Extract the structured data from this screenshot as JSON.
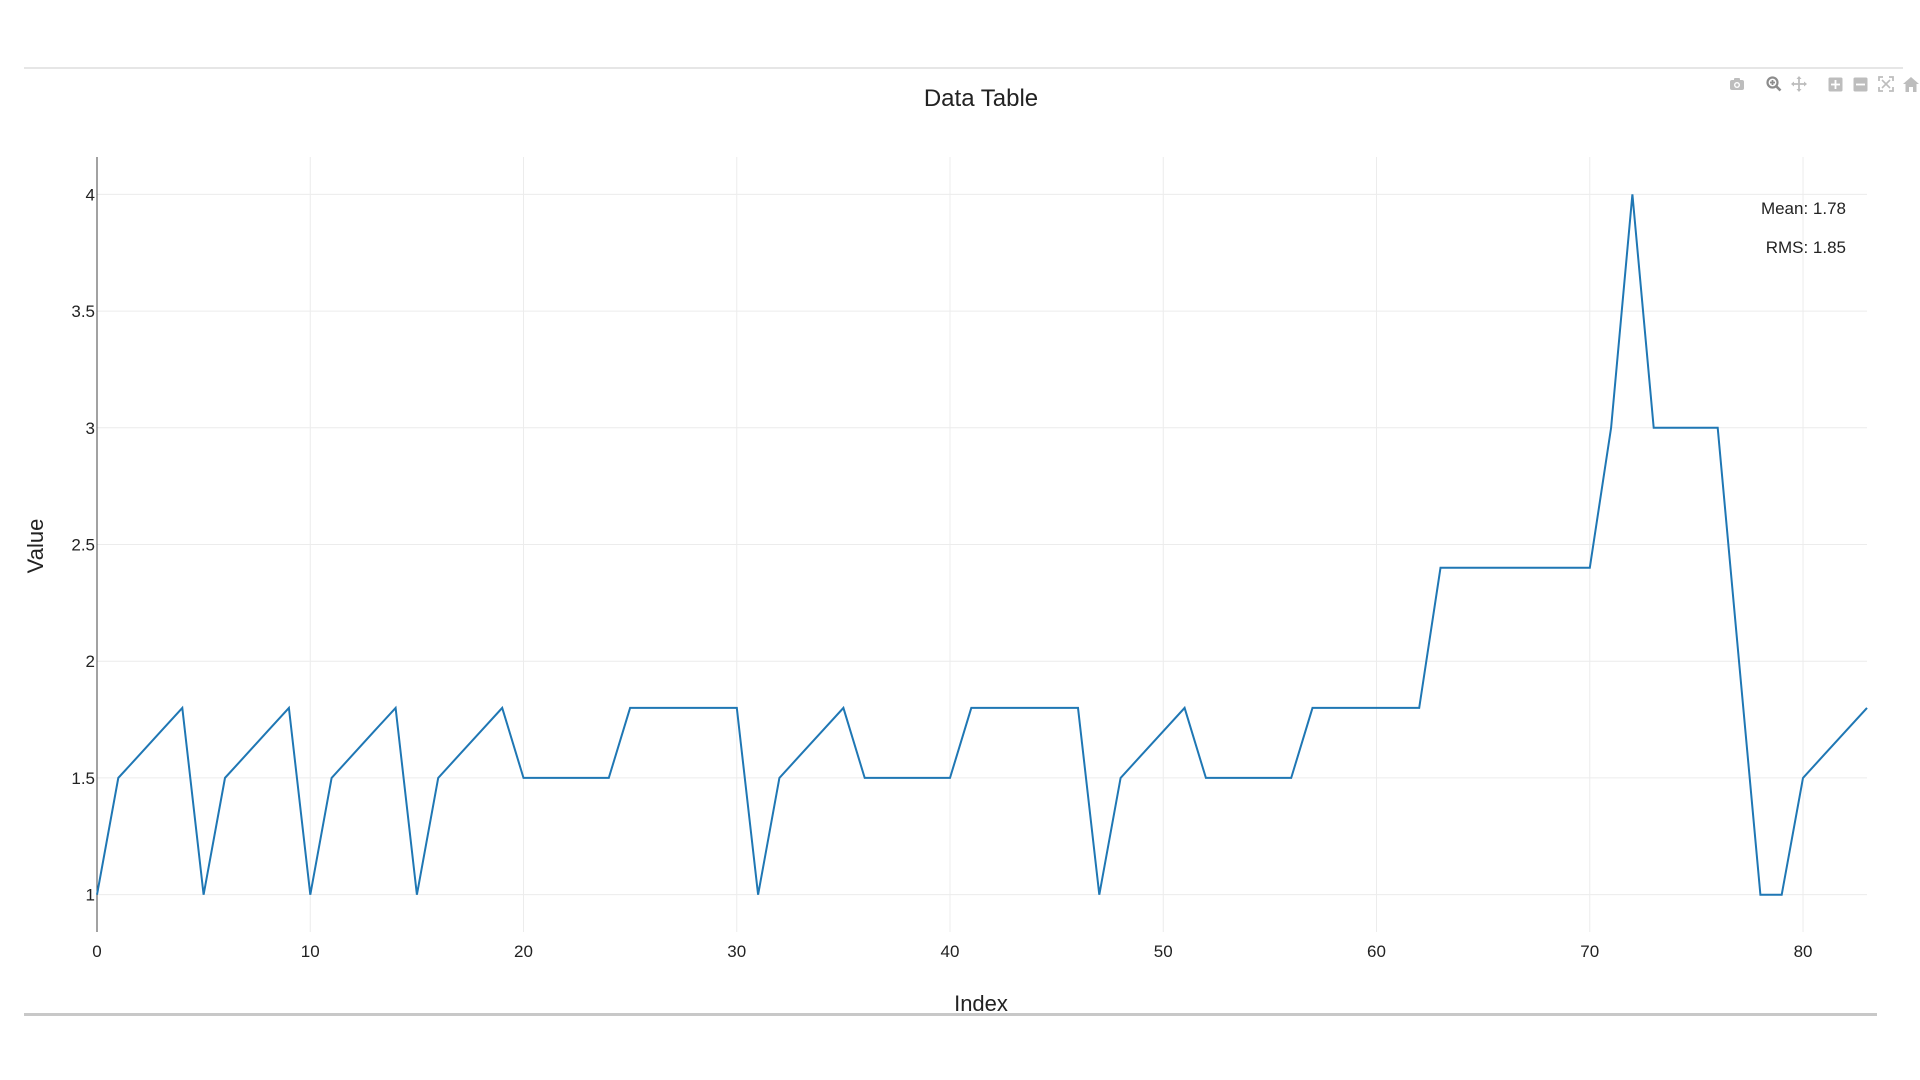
{
  "modebar": {
    "icons": [
      "camera-icon",
      "zoom-icon",
      "pan-icon",
      "zoom-in-icon",
      "zoom-out-icon",
      "autoscale-icon",
      "home-icon"
    ],
    "icon_color": "#bdbdbd"
  },
  "chart_data": {
    "type": "line",
    "title": "Data Table",
    "xlabel": "Index",
    "ylabel": "Value",
    "xlim": [
      0,
      83
    ],
    "ylim": [
      0.84,
      4.16
    ],
    "x_ticks": [
      0,
      10,
      20,
      30,
      40,
      50,
      60,
      70,
      80
    ],
    "y_ticks": [
      1,
      1.5,
      2,
      2.5,
      3,
      3.5,
      4
    ],
    "y_tick_labels": [
      "1",
      "1.5",
      "2",
      "2.5",
      "3",
      "3.5",
      "4"
    ],
    "grid": true,
    "line_color": "#1f77b4",
    "series": [
      {
        "x": [
          0,
          1,
          2,
          3,
          4,
          5,
          6,
          7,
          8,
          9,
          10,
          11,
          12,
          13,
          14,
          15,
          16,
          17,
          18,
          19,
          20,
          21,
          22,
          23,
          24,
          25,
          26,
          27,
          28,
          29,
          30,
          31,
          32,
          33,
          34,
          35,
          36,
          37,
          38,
          39,
          40,
          41,
          42,
          43,
          44,
          45,
          46,
          47,
          48,
          49,
          50,
          51,
          52,
          53,
          54,
          55,
          56,
          57,
          58,
          59,
          60,
          61,
          62,
          63,
          64,
          65,
          66,
          67,
          68,
          69,
          70,
          71,
          72,
          73,
          74,
          75,
          76,
          77,
          78,
          79,
          80,
          81,
          82,
          83
        ],
        "y": [
          1,
          1.5,
          1.6,
          1.7,
          1.8,
          1,
          1.5,
          1.6,
          1.7,
          1.8,
          1,
          1.5,
          1.6,
          1.7,
          1.8,
          1,
          1.5,
          1.6,
          1.7,
          1.8,
          1.5,
          1.5,
          1.5,
          1.5,
          1.5,
          1.8,
          1.8,
          1.8,
          1.8,
          1.8,
          1.8,
          1,
          1.5,
          1.6,
          1.7,
          1.8,
          1.5,
          1.5,
          1.5,
          1.5,
          1.5,
          1.8,
          1.8,
          1.8,
          1.8,
          1.8,
          1.8,
          1,
          1.5,
          1.6,
          1.7,
          1.8,
          1.5,
          1.5,
          1.5,
          1.5,
          1.5,
          1.8,
          1.8,
          1.8,
          1.8,
          1.8,
          1.8,
          2.4,
          2.4,
          2.4,
          2.4,
          2.4,
          2.4,
          2.4,
          2.4,
          3,
          4,
          3,
          3,
          3,
          3,
          2,
          1,
          1,
          1.5,
          1.6,
          1.7,
          1.8
        ]
      }
    ],
    "annotations": [
      "Mean: 1.78",
      "RMS: 1.85"
    ]
  }
}
